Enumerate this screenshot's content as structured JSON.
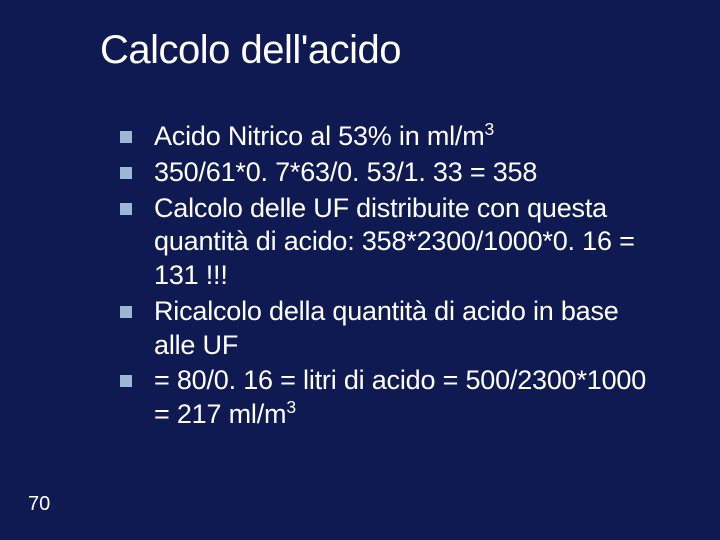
{
  "background_color": "#0f1a53",
  "text_color": "#ffffff",
  "bullet_color": "#9bb7d4",
  "title": "Calcolo dell'acido",
  "title_fontsize": 40,
  "body_fontsize": 27,
  "page_number": "70",
  "bullets": [
    {
      "text_html": "Acido Nitrico al 53% in ml/m<sup>3</sup>",
      "indent": false
    },
    {
      "text_html": "350/61*0. 7*63/0. 53/1. 33 = 358",
      "indent": false
    },
    {
      "text_html": "Calcolo delle UF distribuite con questa quantità di acido: 358*2300/1000*0. 16 = 131 !!!",
      "indent": false
    },
    {
      "text_html": "Ricalcolo della quantità di acido in base alle UF",
      "indent": false
    },
    {
      "text_html": " = 80/0. 16 = litri di acido = 500/2300*1000 = 217 ml/m<sup>3</sup>",
      "indent": true
    }
  ]
}
